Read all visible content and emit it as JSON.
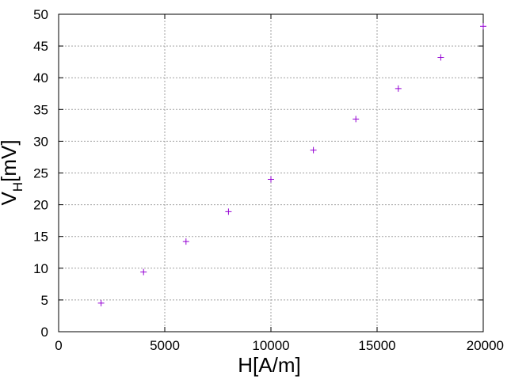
{
  "chart_data": {
    "type": "scatter",
    "title": "",
    "xlabel": "H[A/m]",
    "ylabel": {
      "main": "V",
      "subscript": "H",
      "suffix": "[mV]"
    },
    "xlim": [
      0,
      20000
    ],
    "ylim": [
      0,
      50
    ],
    "x_ticks": [
      0,
      5000,
      10000,
      15000,
      20000
    ],
    "y_ticks": [
      0,
      5,
      10,
      15,
      20,
      25,
      30,
      35,
      40,
      45,
      50
    ],
    "grid": true,
    "legend": "none",
    "marker": "plus",
    "point_color": "#9400d3",
    "series": [
      {
        "points": [
          {
            "x": 2000,
            "y": 4.5
          },
          {
            "x": 4000,
            "y": 9.4
          },
          {
            "x": 6000,
            "y": 14.2
          },
          {
            "x": 8000,
            "y": 18.9
          },
          {
            "x": 10000,
            "y": 24.0
          },
          {
            "x": 12000,
            "y": 28.6
          },
          {
            "x": 14000,
            "y": 33.5
          },
          {
            "x": 16000,
            "y": 38.3
          },
          {
            "x": 18000,
            "y": 43.2
          },
          {
            "x": 20000,
            "y": 48.1
          }
        ]
      }
    ]
  }
}
